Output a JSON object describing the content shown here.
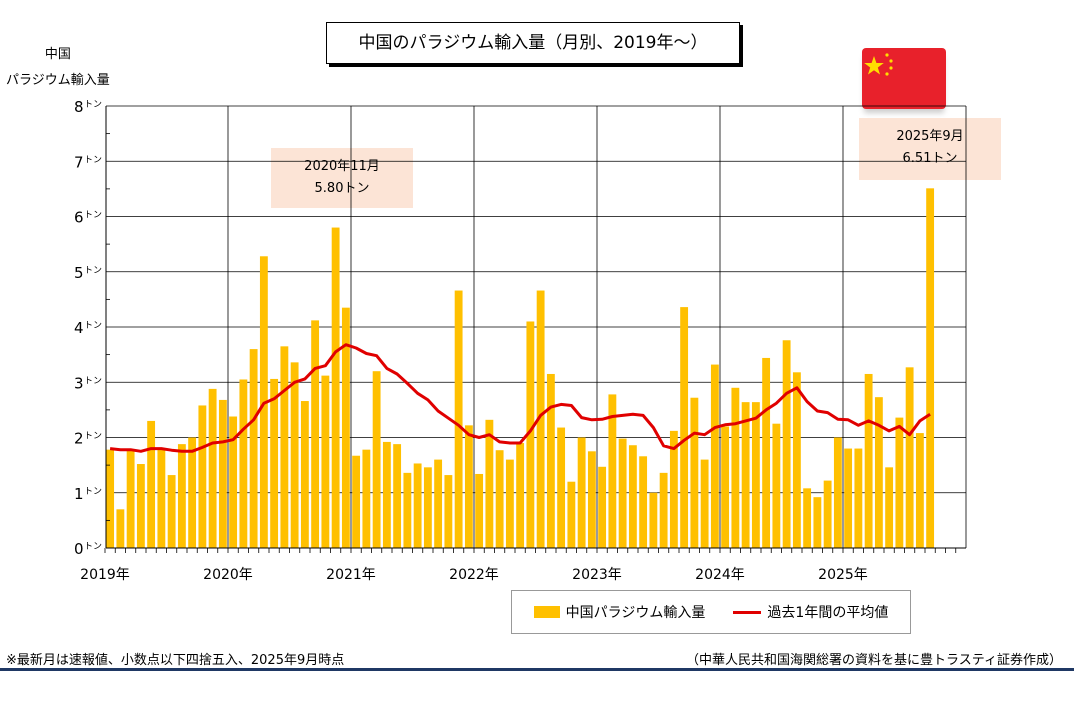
{
  "title": "中国のパラジウム輸入量（月別、2019年～）",
  "y_unit_label": [
    "中国",
    "パラジウム輸入量"
  ],
  "callouts": [
    {
      "date": "2020年11月",
      "value": "5.80トン"
    },
    {
      "date": "2025年9月",
      "value": "6.51トン"
    }
  ],
  "legend": {
    "bar": "中国パラジウム輸入量",
    "line": "過去1年間の平均値"
  },
  "footnote_left": "※最新月は速報値、小数点以下四捨五入、2025年9月時点",
  "footnote_right": "（中華人民共和国海関総署の資料を基に豊トラスティ証券作成）",
  "colors": {
    "bar": "#ffc000",
    "line": "#e00000",
    "flag": "#e8212b",
    "callout": "#fce4d6"
  },
  "chart_data": {
    "type": "bar",
    "x_labels": [
      "2019年",
      "2020年",
      "2021年",
      "2022年",
      "2023年",
      "2024年",
      "2025年"
    ],
    "y_ticks": [
      0,
      1,
      2,
      3,
      4,
      5,
      6,
      7,
      8
    ],
    "y_tick_unit": "トン",
    "ylim": [
      0,
      8
    ],
    "grid": true,
    "start": "2019-01",
    "series": [
      {
        "name": "中国パラジウム輸入量",
        "type": "bar",
        "values": [
          1.78,
          0.7,
          1.78,
          1.52,
          2.3,
          1.78,
          1.32,
          1.88,
          2.0,
          2.58,
          2.88,
          2.68,
          2.38,
          3.05,
          3.6,
          5.28,
          3.06,
          3.65,
          3.36,
          2.66,
          4.12,
          3.12,
          5.8,
          4.35,
          1.67,
          1.78,
          3.2,
          1.92,
          1.88,
          1.36,
          1.53,
          1.46,
          1.6,
          1.32,
          4.66,
          2.22,
          1.34,
          2.32,
          1.77,
          1.6,
          1.9,
          4.1,
          4.66,
          3.15,
          2.18,
          1.2,
          2.0,
          1.75,
          1.47,
          2.78,
          1.98,
          1.86,
          1.66,
          1.0,
          1.36,
          2.12,
          4.36,
          2.72,
          1.6,
          3.32,
          2.2,
          2.9,
          2.64,
          2.64,
          3.44,
          2.25,
          3.76,
          3.18,
          1.08,
          0.92,
          1.22,
          2.0,
          1.8,
          1.8,
          3.15,
          2.73,
          1.46,
          2.36,
          3.27,
          2.08,
          6.51
        ]
      },
      {
        "name": "過去1年間の平均値",
        "type": "line",
        "values": [
          1.8,
          1.78,
          1.78,
          1.75,
          1.8,
          1.8,
          1.77,
          1.75,
          1.75,
          1.82,
          1.9,
          1.92,
          1.96,
          2.15,
          2.32,
          2.62,
          2.7,
          2.85,
          3.0,
          3.06,
          3.25,
          3.3,
          3.55,
          3.68,
          3.62,
          3.52,
          3.48,
          3.25,
          3.15,
          2.98,
          2.8,
          2.68,
          2.48,
          2.35,
          2.22,
          2.05,
          2.0,
          2.05,
          1.92,
          1.9,
          1.9,
          2.12,
          2.4,
          2.55,
          2.6,
          2.58,
          2.36,
          2.32,
          2.33,
          2.38,
          2.4,
          2.42,
          2.4,
          2.18,
          1.85,
          1.8,
          1.95,
          2.08,
          2.05,
          2.18,
          2.23,
          2.25,
          2.3,
          2.35,
          2.5,
          2.62,
          2.8,
          2.9,
          2.65,
          2.48,
          2.45,
          2.33,
          2.32,
          2.22,
          2.3,
          2.22,
          2.12,
          2.2,
          2.05,
          2.3,
          2.42
        ]
      }
    ]
  }
}
